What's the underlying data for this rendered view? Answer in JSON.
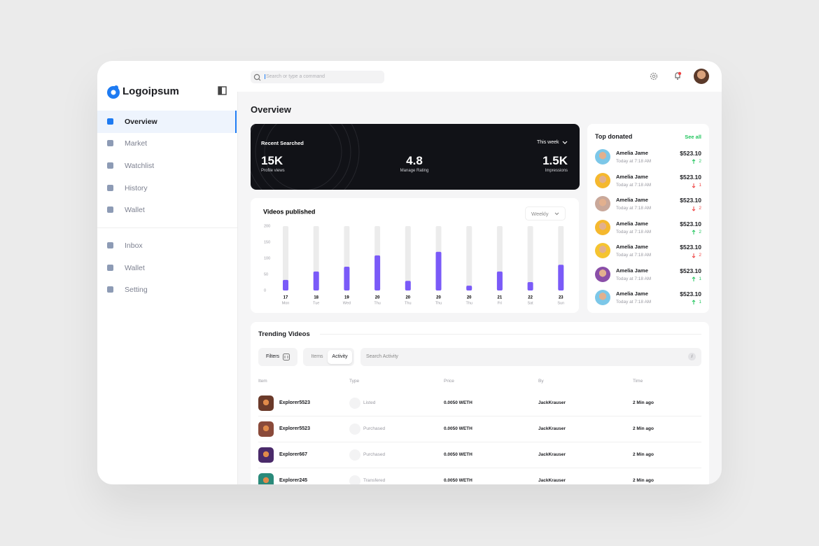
{
  "sidebar": {
    "logo": "Logoipsum",
    "nav": [
      "Overview",
      "Market",
      "Watchlist",
      "History",
      "Wallet"
    ],
    "nav2": [
      "Inbox",
      "Wallet",
      "Setting"
    ],
    "active": 0
  },
  "header": {
    "search_placeholder": "Search or type a command"
  },
  "page_title": "Overview",
  "stats": {
    "title": "Recent Searched",
    "period": "This week",
    "items": [
      {
        "value": "15K",
        "label": "Profile views"
      },
      {
        "value": "4.8",
        "label": "Manage Rating"
      },
      {
        "value": "1.5K",
        "label": "Impressions"
      }
    ]
  },
  "chart_data": {
    "type": "bar",
    "title": "Videos published",
    "period": "Weekly",
    "categories": [
      "17",
      "18",
      "19",
      "20",
      "20",
      "20",
      "20",
      "21",
      "22",
      "23"
    ],
    "weekdays": [
      "Mon",
      "Tue",
      "Wed",
      "Thu",
      "Thu",
      "Thu",
      "Thu",
      "Fri",
      "Sat",
      "Sun"
    ],
    "values": [
      33,
      59,
      74,
      109,
      30,
      120,
      15,
      59,
      26,
      80
    ],
    "color": "#7a5af8",
    "track_color": "#ececec",
    "ylim": [
      0,
      200
    ],
    "yticks": [
      0,
      50,
      100,
      150,
      200
    ]
  },
  "top_donated": {
    "title": "Top donated",
    "link": "See all",
    "rows": [
      {
        "name": "Amelia Jame",
        "time": "Today at 7:18 AM",
        "amount": "$523.10",
        "change": "2",
        "direction": "up"
      },
      {
        "name": "Amelia Jame",
        "time": "Today at 7:18 AM",
        "amount": "$523.10",
        "change": "1",
        "direction": "down"
      },
      {
        "name": "Amelia Jame",
        "time": "Today at 7:18 AM",
        "amount": "$523.10",
        "change": "2",
        "direction": "down"
      },
      {
        "name": "Amelia Jame",
        "time": "Today at 7:18 AM",
        "amount": "$523.10",
        "change": "2",
        "direction": "up"
      },
      {
        "name": "Amelia Jame",
        "time": "Today at 7:18 AM",
        "amount": "$523.10",
        "change": "2",
        "direction": "down"
      },
      {
        "name": "Amelia Jame",
        "time": "Today at 7:18 AM",
        "amount": "$523.10",
        "change": "1",
        "direction": "up"
      },
      {
        "name": "Amelia Jame",
        "time": "Today at 7:18 AM",
        "amount": "$523.10",
        "change": "1",
        "direction": "up"
      }
    ]
  },
  "trending": {
    "title": "Trending Videos",
    "filters": "Filters",
    "tabs": [
      "Items",
      "Activity"
    ],
    "active_tab": 1,
    "search_placeholder": "Search Activity",
    "shortcut": "/",
    "columns": [
      "Item",
      "Type",
      "Price",
      "By",
      "Time"
    ],
    "rows": [
      [
        "Explorer5523",
        "Listed",
        "0.0050 WETH",
        "JackKrauser",
        "2 Min ago"
      ],
      [
        "Explorer5523",
        "Purchased",
        "0.0050 WETH",
        "JackKrauser",
        "2 Min ago"
      ],
      [
        "Explorer667",
        "Purchased",
        "0.0050 WETH",
        "JackKrauser",
        "2 Min ago"
      ],
      [
        "Explorer245",
        "Transfered",
        "0.0050 WETH",
        "JackKrauser",
        "2 Min ago"
      ]
    ]
  }
}
